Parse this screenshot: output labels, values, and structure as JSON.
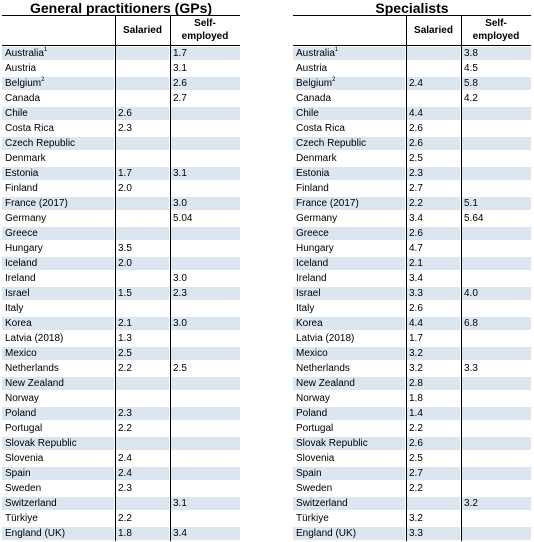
{
  "left": {
    "title": "General practitioners (GPs)",
    "col_salaried": "Salaried",
    "col_self": [
      "Self-",
      "employed"
    ],
    "rows": [
      {
        "country": "Australia",
        "sup": "1",
        "salaried": "",
        "self": "1.7"
      },
      {
        "country": "Austria",
        "sup": "",
        "salaried": "",
        "self": "3.1"
      },
      {
        "country": "Belgium",
        "sup": "2",
        "salaried": "",
        "self": "2.6"
      },
      {
        "country": "Canada",
        "sup": "",
        "salaried": "",
        "self": "2.7"
      },
      {
        "country": "Chile",
        "sup": "",
        "salaried": "2.6",
        "self": ""
      },
      {
        "country": "Costa Rica",
        "sup": "",
        "salaried": "2.3",
        "self": ""
      },
      {
        "country": "Czech Republic",
        "sup": "",
        "salaried": "",
        "self": ""
      },
      {
        "country": "Denmark",
        "sup": "",
        "salaried": "",
        "self": ""
      },
      {
        "country": "Estonia",
        "sup": "",
        "salaried": "1.7",
        "self": "3.1"
      },
      {
        "country": "Finland",
        "sup": "",
        "salaried": "2.0",
        "self": ""
      },
      {
        "country": "France (2017)",
        "sup": "",
        "salaried": "",
        "self": "3.0"
      },
      {
        "country": "Germany",
        "sup": "",
        "salaried": "",
        "self": "5.04"
      },
      {
        "country": "Greece",
        "sup": "",
        "salaried": "",
        "self": ""
      },
      {
        "country": "Hungary",
        "sup": "",
        "salaried": "3.5",
        "self": ""
      },
      {
        "country": "Iceland",
        "sup": "",
        "salaried": "2.0",
        "self": ""
      },
      {
        "country": "Ireland",
        "sup": "",
        "salaried": "",
        "self": "3.0"
      },
      {
        "country": "Israel",
        "sup": "",
        "salaried": "1.5",
        "self": "2.3"
      },
      {
        "country": "Italy",
        "sup": "",
        "salaried": "",
        "self": ""
      },
      {
        "country": "Korea",
        "sup": "",
        "salaried": "2.1",
        "self": "3.0"
      },
      {
        "country": "Latvia (2018)",
        "sup": "",
        "salaried": "1.3",
        "self": ""
      },
      {
        "country": "Mexico",
        "sup": "",
        "salaried": "2.5",
        "self": ""
      },
      {
        "country": "Netherlands",
        "sup": "",
        "salaried": "2.2",
        "self": "2.5"
      },
      {
        "country": "New Zealand",
        "sup": "",
        "salaried": "",
        "self": ""
      },
      {
        "country": "Norway",
        "sup": "",
        "salaried": "",
        "self": ""
      },
      {
        "country": "Poland",
        "sup": "",
        "salaried": "2.3",
        "self": ""
      },
      {
        "country": "Portugal",
        "sup": "",
        "salaried": "2.2",
        "self": ""
      },
      {
        "country": "Slovak Republic",
        "sup": "",
        "salaried": "",
        "self": ""
      },
      {
        "country": "Slovenia",
        "sup": "",
        "salaried": "2.4",
        "self": ""
      },
      {
        "country": "Spain",
        "sup": "",
        "salaried": "2.4",
        "self": ""
      },
      {
        "country": "Sweden",
        "sup": "",
        "salaried": "2.3",
        "self": ""
      },
      {
        "country": "Switzerland",
        "sup": "",
        "salaried": "",
        "self": "3.1"
      },
      {
        "country": "Türkiye",
        "sup": "",
        "salaried": "2.2",
        "self": ""
      },
      {
        "country": "England (UK)",
        "sup": "",
        "salaried": "1.8",
        "self": "3.4"
      }
    ]
  },
  "right": {
    "title": "Specialists",
    "col_salaried": "Salaried",
    "col_self": [
      "Self-",
      "employed"
    ],
    "rows": [
      {
        "country": "Australia",
        "sup": "1",
        "salaried": "",
        "self": "3.8"
      },
      {
        "country": "Austria",
        "sup": "",
        "salaried": "",
        "self": "4.5"
      },
      {
        "country": "Belgium",
        "sup": "2",
        "salaried": "2.4",
        "self": "5.8"
      },
      {
        "country": "Canada",
        "sup": "",
        "salaried": "",
        "self": "4.2"
      },
      {
        "country": "Chile",
        "sup": "",
        "salaried": "4.4",
        "self": ""
      },
      {
        "country": "Costa Rica",
        "sup": "",
        "salaried": "2.6",
        "self": ""
      },
      {
        "country": "Czech Republic",
        "sup": "",
        "salaried": "2.6",
        "self": ""
      },
      {
        "country": "Denmark",
        "sup": "",
        "salaried": "2.5",
        "self": ""
      },
      {
        "country": "Estonia",
        "sup": "",
        "salaried": "2.3",
        "self": ""
      },
      {
        "country": "Finland",
        "sup": "",
        "salaried": "2.7",
        "self": ""
      },
      {
        "country": "France (2017)",
        "sup": "",
        "salaried": "2.2",
        "self": "5.1"
      },
      {
        "country": "Germany",
        "sup": "",
        "salaried": "3.4",
        "self": "5.64"
      },
      {
        "country": "Greece",
        "sup": "",
        "salaried": "2.6",
        "self": ""
      },
      {
        "country": "Hungary",
        "sup": "",
        "salaried": "4.7",
        "self": ""
      },
      {
        "country": "Iceland",
        "sup": "",
        "salaried": "2.1",
        "self": ""
      },
      {
        "country": "Ireland",
        "sup": "",
        "salaried": "3.4",
        "self": ""
      },
      {
        "country": "Israel",
        "sup": "",
        "salaried": "3.3",
        "self": "4.0"
      },
      {
        "country": "Italy",
        "sup": "",
        "salaried": "2.6",
        "self": ""
      },
      {
        "country": "Korea",
        "sup": "",
        "salaried": "4.4",
        "self": "6.8"
      },
      {
        "country": "Latvia (2018)",
        "sup": "",
        "salaried": "1.7",
        "self": ""
      },
      {
        "country": "Mexico",
        "sup": "",
        "salaried": "3.2",
        "self": ""
      },
      {
        "country": "Netherlands",
        "sup": "",
        "salaried": "3.2",
        "self": "3.3"
      },
      {
        "country": "New Zealand",
        "sup": "",
        "salaried": "2.8",
        "self": ""
      },
      {
        "country": "Norway",
        "sup": "",
        "salaried": "1.8",
        "self": ""
      },
      {
        "country": "Poland",
        "sup": "",
        "salaried": "1.4",
        "self": ""
      },
      {
        "country": "Portugal",
        "sup": "",
        "salaried": "2.2",
        "self": ""
      },
      {
        "country": "Slovak Republic",
        "sup": "",
        "salaried": "2.6",
        "self": ""
      },
      {
        "country": "Slovenia",
        "sup": "",
        "salaried": "2.5",
        "self": ""
      },
      {
        "country": "Spain",
        "sup": "",
        "salaried": "2.7",
        "self": ""
      },
      {
        "country": "Sweden",
        "sup": "",
        "salaried": "2.2",
        "self": ""
      },
      {
        "country": "Switzerland",
        "sup": "",
        "salaried": "",
        "self": "3.2"
      },
      {
        "country": "Türkiye",
        "sup": "",
        "salaried": "3.2",
        "self": ""
      },
      {
        "country": "England (UK)",
        "sup": "",
        "salaried": "3.3",
        "self": ""
      }
    ]
  },
  "colors": {
    "row_shade": "#dce6f1",
    "rule": "#000000"
  }
}
